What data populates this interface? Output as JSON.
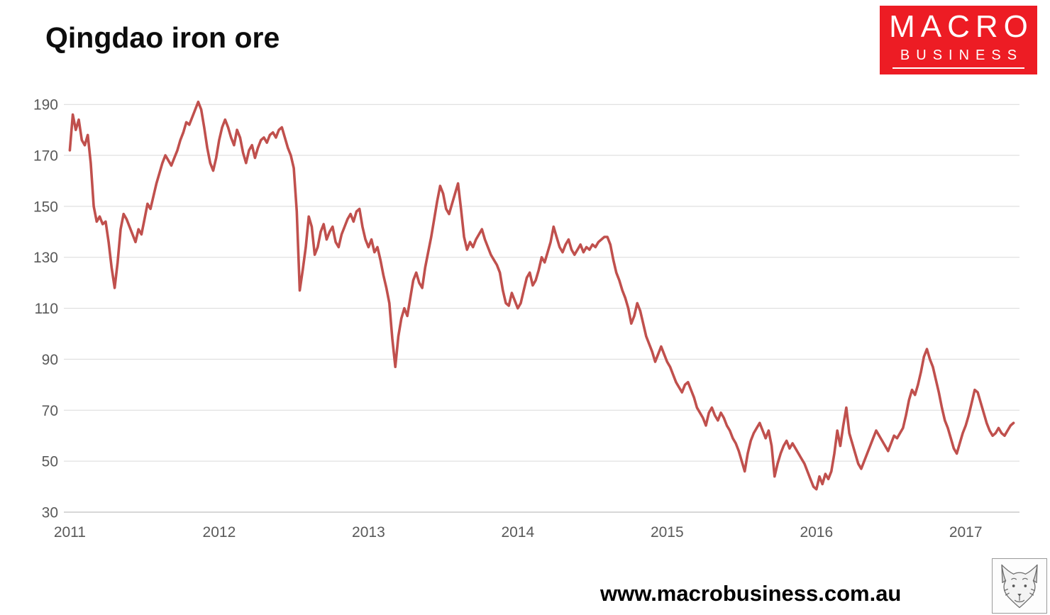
{
  "title": "Qingdao iron ore",
  "logo": {
    "line1": "MACRO",
    "line2": "BUSINESS",
    "bg_color": "#ed1c24",
    "text_color": "#ffffff"
  },
  "footer": {
    "website": "www.macrobusiness.com.au",
    "logo_icon": "fox-sketch-icon"
  },
  "chart_data": {
    "type": "line",
    "title": "Qingdao iron ore",
    "xlabel": "",
    "ylabel": "",
    "grid": true,
    "legend": false,
    "line_color": "#c0504d",
    "grid_color": "#d9d9d9",
    "axis_line_color": "#bfbfbf",
    "tick_label_color": "#595959",
    "xlim": [
      2010.96,
      2017.36
    ],
    "ylim": [
      30,
      192
    ],
    "yticks": [
      30,
      50,
      70,
      90,
      110,
      130,
      150,
      170,
      190
    ],
    "xticks": [
      2011,
      2012,
      2013,
      2014,
      2015,
      2016,
      2017
    ],
    "x_start": 2011.0,
    "x_step": 0.02,
    "values": [
      172,
      186,
      180,
      184,
      176,
      174,
      178,
      167,
      150,
      144,
      146,
      143,
      144,
      136,
      126,
      118,
      128,
      141,
      147,
      145,
      142,
      139,
      136,
      141,
      139,
      145,
      151,
      149,
      154,
      159,
      163,
      167,
      170,
      168,
      166,
      169,
      172,
      176,
      179,
      183,
      182,
      185,
      188,
      191,
      188,
      181,
      173,
      167,
      164,
      169,
      176,
      181,
      184,
      181,
      177,
      174,
      180,
      177,
      171,
      167,
      172,
      174,
      169,
      173,
      176,
      177,
      175,
      178,
      179,
      177,
      180,
      181,
      177,
      173,
      170,
      165,
      148,
      117,
      125,
      134,
      146,
      142,
      131,
      134,
      140,
      143,
      137,
      140,
      142,
      136,
      134,
      139,
      142,
      145,
      147,
      144,
      148,
      149,
      142,
      137,
      134,
      137,
      132,
      134,
      129,
      123,
      118,
      112,
      98,
      87,
      99,
      106,
      110,
      107,
      114,
      121,
      124,
      120,
      118,
      126,
      132,
      138,
      145,
      152,
      158,
      155,
      149,
      147,
      151,
      155,
      159,
      149,
      138,
      133,
      136,
      134,
      137,
      139,
      141,
      137,
      134,
      131,
      129,
      127,
      124,
      117,
      112,
      111,
      116,
      113,
      110,
      112,
      117,
      122,
      124,
      119,
      121,
      125,
      130,
      128,
      132,
      136,
      142,
      138,
      134,
      132,
      135,
      137,
      133,
      131,
      133,
      135,
      132,
      134,
      133,
      135,
      134,
      136,
      137,
      138,
      138,
      135,
      129,
      124,
      121,
      117,
      114,
      110,
      104,
      107,
      112,
      109,
      104,
      99,
      96,
      93,
      89,
      92,
      95,
      92,
      89,
      87,
      84,
      81,
      79,
      77,
      80,
      81,
      78,
      75,
      71,
      69,
      67,
      64,
      69,
      71,
      68,
      66,
      69,
      67,
      64,
      62,
      59,
      57,
      54,
      50,
      46,
      53,
      58,
      61,
      63,
      65,
      62,
      59,
      62,
      56,
      44,
      49,
      53,
      56,
      58,
      55,
      57,
      55,
      53,
      51,
      49,
      46,
      43,
      40,
      39,
      44,
      41,
      45,
      43,
      46,
      53,
      62,
      56,
      64,
      71,
      61,
      57,
      53,
      49,
      47,
      50,
      53,
      56,
      59,
      62,
      60,
      58,
      56,
      54,
      57,
      60,
      59,
      61,
      63,
      68,
      74,
      78,
      76,
      80,
      85,
      91,
      94,
      90,
      87,
      82,
      77,
      71,
      66,
      63,
      59,
      55,
      53,
      57,
      61,
      64,
      68,
      73,
      78,
      77,
      73,
      69,
      65,
      62,
      60,
      61,
      63,
      61,
      60,
      62,
      64,
      65
    ]
  }
}
